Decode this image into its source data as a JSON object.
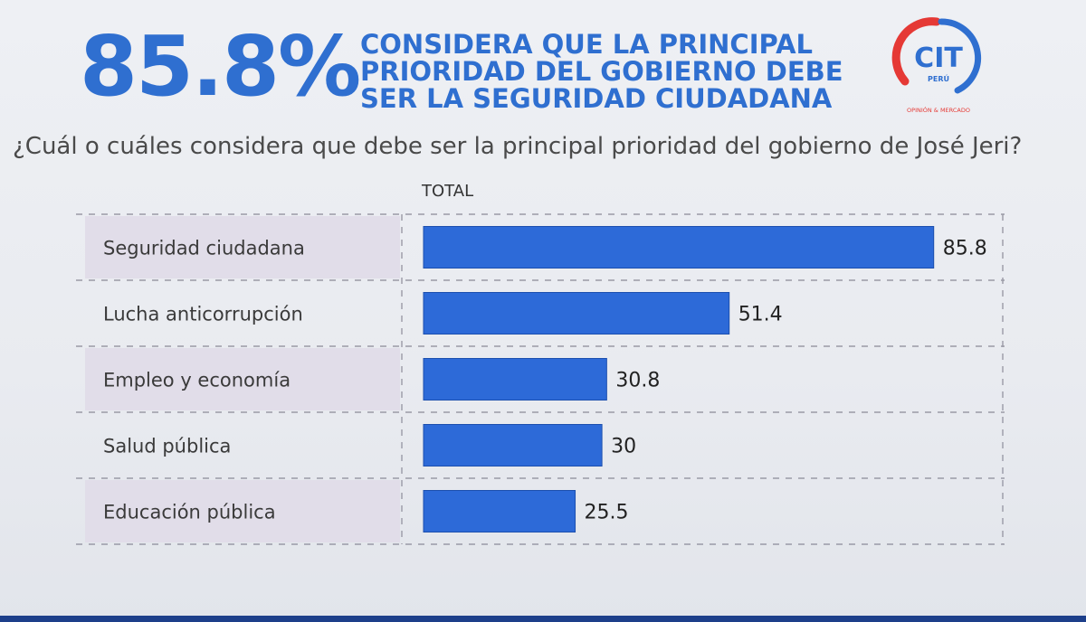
{
  "headline": {
    "percent": "85.8%",
    "lines": [
      "CONSIDERA QUE LA PRINCIPAL",
      "PRIORIDAD DEL GOBIERNO DEBE",
      "SER LA SEGURIDAD CIUDADANA"
    ]
  },
  "logo": {
    "text": "CIT",
    "sub": "PERÚ",
    "tagline": "OPINIÓN & MERCADO"
  },
  "question": "¿Cuál o cuáles considera que debe ser la principal prioridad del gobierno de José Jeri?",
  "colors": {
    "accent": "#2f6fd0",
    "bar": "#2d6ad8",
    "label_bg": "#e1dde9",
    "logo_red": "#e53935"
  },
  "chart_data": {
    "type": "bar",
    "orientation": "horizontal",
    "series_label": "TOTAL",
    "categories": [
      "Seguridad ciudadana",
      "Lucha anticorrupción",
      "Empleo y economía",
      "Salud pública",
      "Educación pública"
    ],
    "values": [
      85.8,
      51.4,
      30.8,
      30,
      25.5
    ],
    "value_labels": [
      "85.8",
      "51.4",
      "30.8",
      "30",
      "25.5"
    ],
    "xlim": [
      0,
      100
    ]
  }
}
